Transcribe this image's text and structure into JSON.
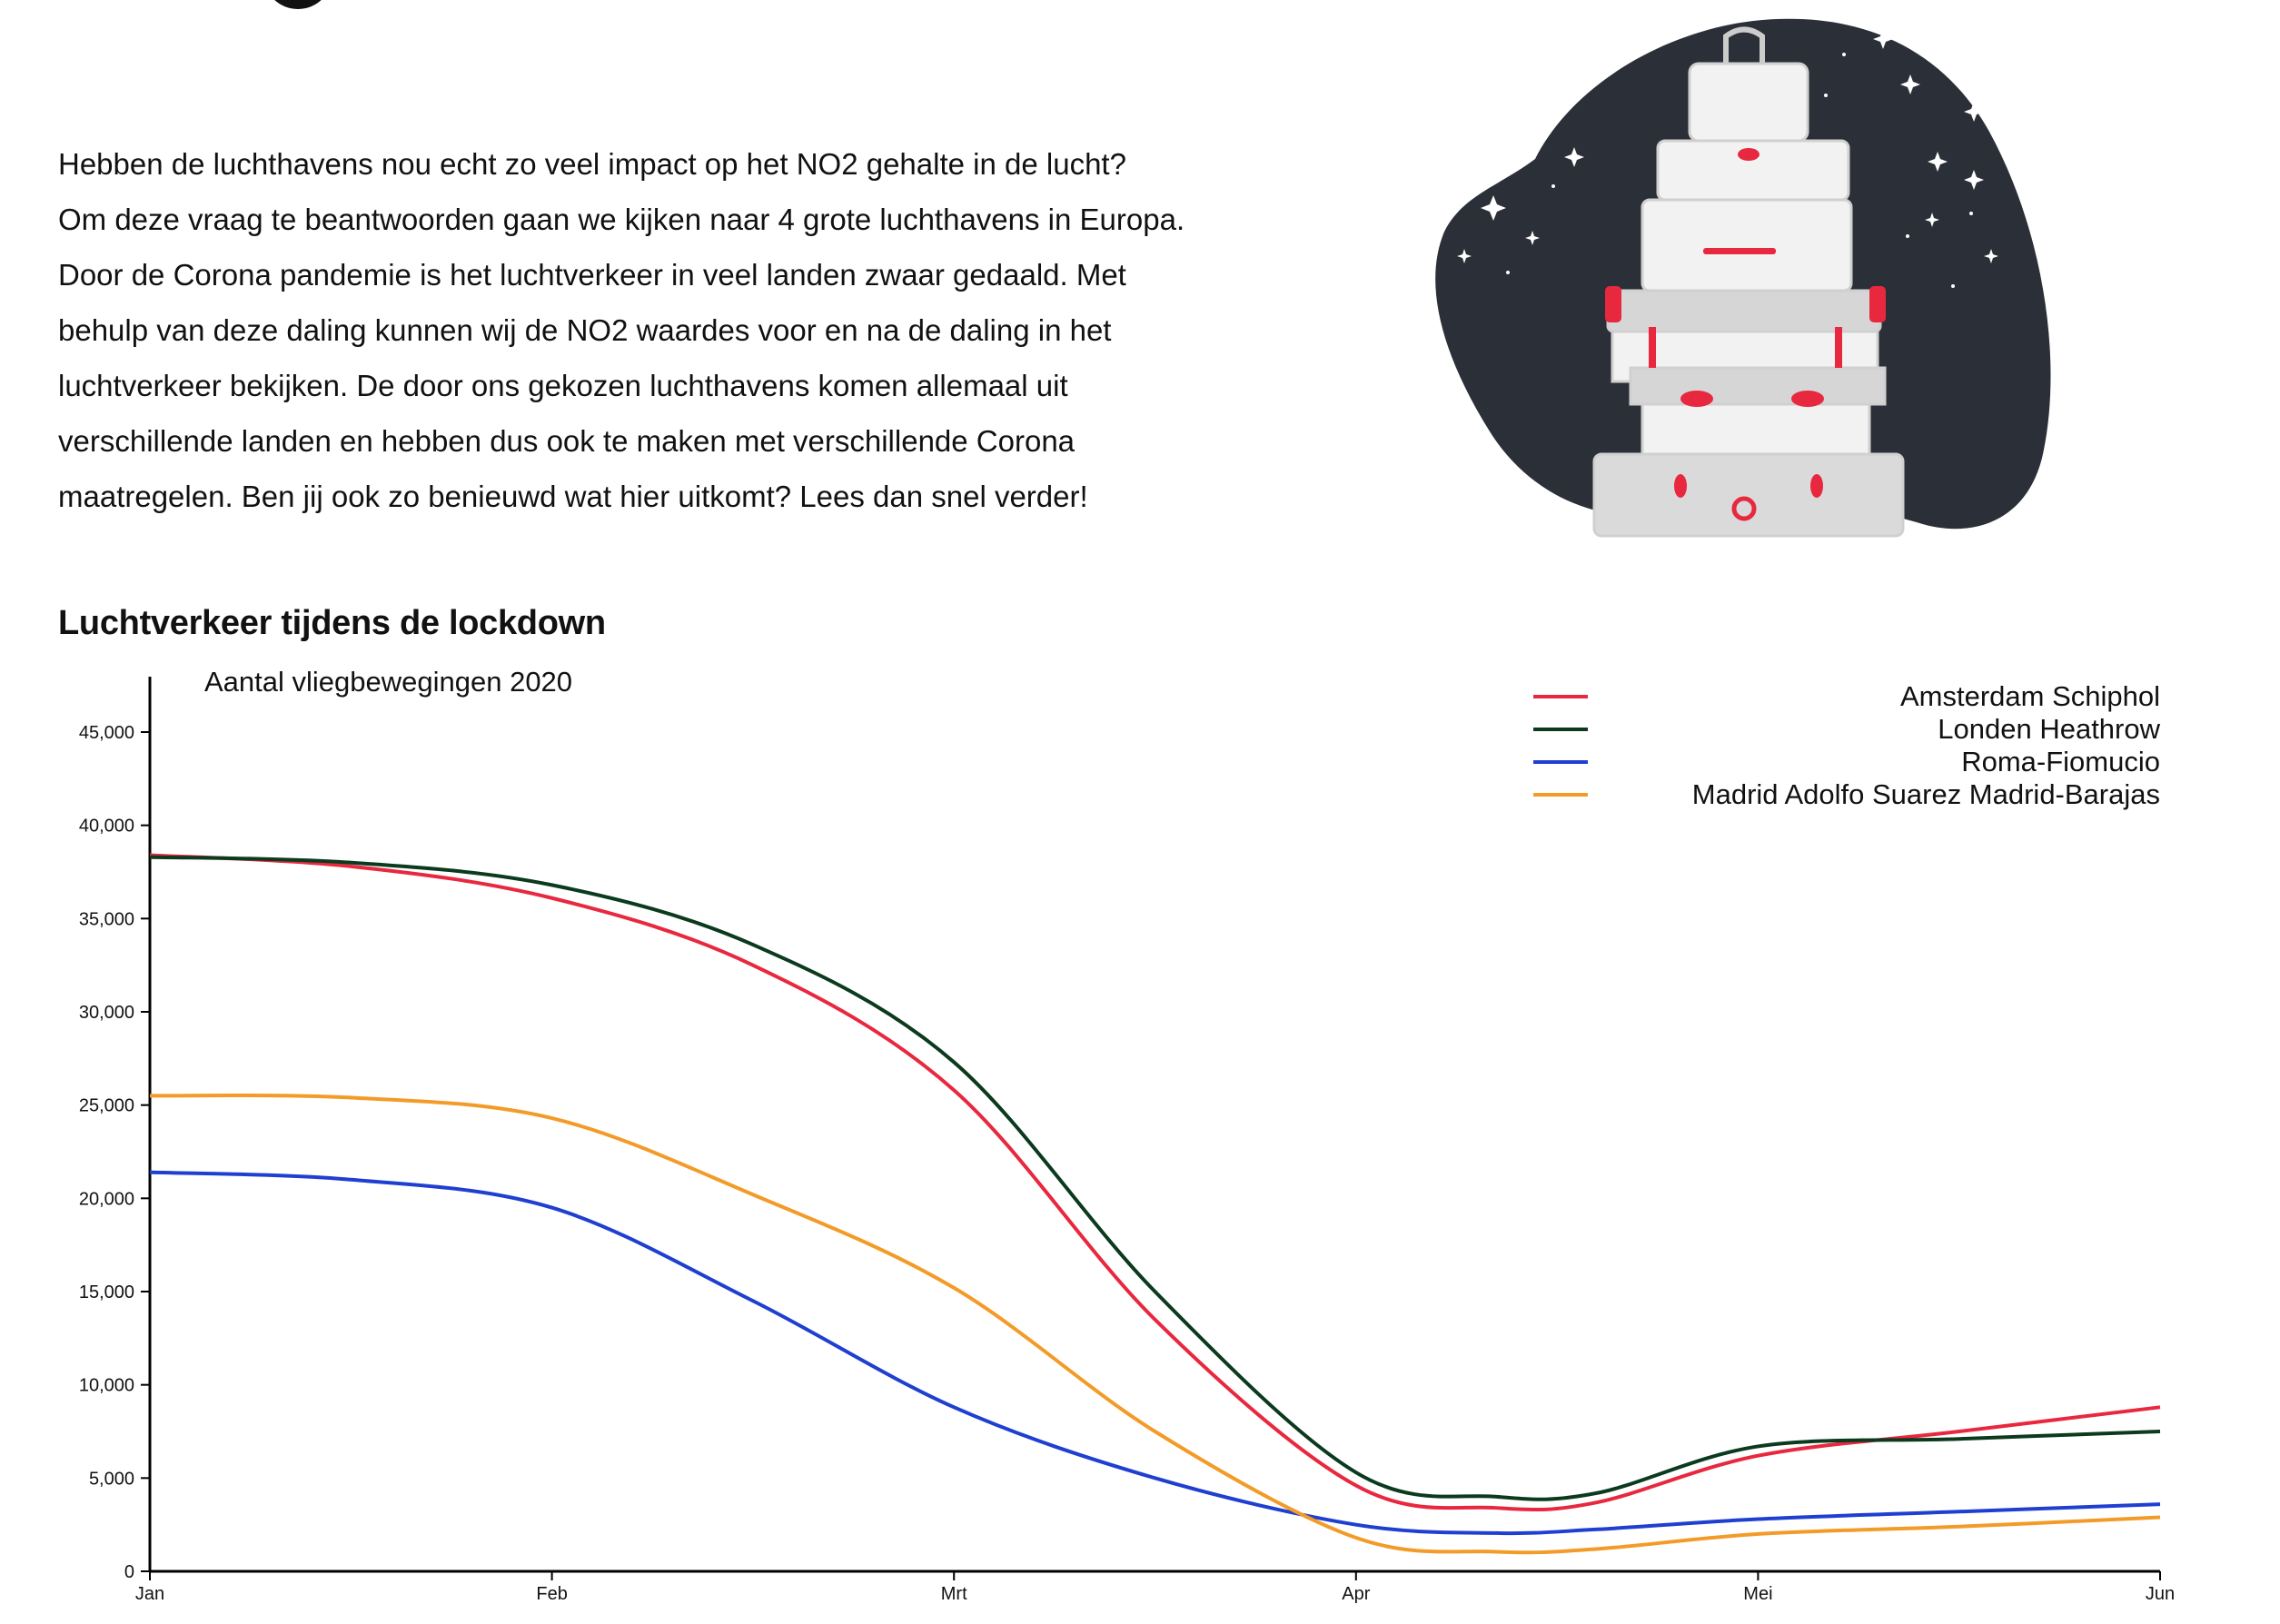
{
  "intro": {
    "lines": [
      "Hebben de luchthavens nou echt zo veel impact op het NO2 gehalte in de lucht?",
      "Om deze vraag te beantwoorden gaan we kijken naar 4 grote luchthavens in Europa.",
      "Door de Corona pandemie is het luchtverkeer in veel landen zwaar gedaald. Met",
      "behulp van deze daling kunnen wij de NO2 waardes voor en na de daling in het",
      "luchtverkeer bekijken. De door ons gekozen luchthavens komen allemaal uit",
      "verschillende landen en hebben dus ook te maken met verschillende Corona",
      "maatregelen. Ben jij ook zo benieuwd wat hier uitkomt? Lees dan snel verder!"
    ]
  },
  "illustration": {
    "icon": "stacked-suitcases-illustration",
    "colors": {
      "blob": "#2b2f38",
      "case": "#f0f0f0",
      "accent": "#e8283f"
    }
  },
  "section_title": "Luchtverkeer tijdens de lockdown",
  "chart_data": {
    "type": "line",
    "title": "Aantal vliegbewegingen 2020",
    "categories": [
      "Jan",
      "Feb",
      "Mrt",
      "Apr",
      "Mei",
      "Jun"
    ],
    "ylim": [
      0,
      45000
    ],
    "yticks": [
      "0",
      "5,000",
      "10,000",
      "15,000",
      "20,000",
      "25,000",
      "30,000",
      "35,000",
      "40,000",
      "45,000"
    ],
    "legend_position": "top-right",
    "series": [
      {
        "name": "Amsterdam Schiphol",
        "color": "#e8283f",
        "points": [
          [
            0,
            38400
          ],
          [
            0.5,
            37800
          ],
          [
            1,
            36100
          ],
          [
            1.5,
            32500
          ],
          [
            2,
            25800
          ],
          [
            2.5,
            13500
          ],
          [
            3,
            4600
          ],
          [
            3.35,
            3400
          ],
          [
            3.6,
            3700
          ],
          [
            4,
            6200
          ],
          [
            4.5,
            7500
          ],
          [
            5,
            8800
          ]
        ]
      },
      {
        "name": "Londen Heathrow",
        "color": "#0b3a1e",
        "points": [
          [
            0,
            38300
          ],
          [
            0.5,
            38000
          ],
          [
            1,
            36800
          ],
          [
            1.5,
            33600
          ],
          [
            2,
            27300
          ],
          [
            2.5,
            15000
          ],
          [
            3,
            5300
          ],
          [
            3.35,
            4000
          ],
          [
            3.6,
            4200
          ],
          [
            4,
            6700
          ],
          [
            4.5,
            7100
          ],
          [
            5,
            7500
          ]
        ]
      },
      {
        "name": "Roma-Fiomucio",
        "color": "#1f3fd1",
        "points": [
          [
            0,
            21400
          ],
          [
            0.5,
            21000
          ],
          [
            1,
            19500
          ],
          [
            1.5,
            14500
          ],
          [
            2,
            8800
          ],
          [
            2.5,
            5000
          ],
          [
            3,
            2500
          ],
          [
            3.35,
            2050
          ],
          [
            3.6,
            2250
          ],
          [
            4,
            2800
          ],
          [
            4.5,
            3200
          ],
          [
            5,
            3600
          ]
        ]
      },
      {
        "name": "Madrid Adolfo Suarez Madrid-Barajas",
        "color": "#f39b28",
        "points": [
          [
            0,
            25500
          ],
          [
            0.5,
            25400
          ],
          [
            1,
            24300
          ],
          [
            1.5,
            20200
          ],
          [
            2,
            15200
          ],
          [
            2.5,
            7500
          ],
          [
            3,
            1800
          ],
          [
            3.35,
            1050
          ],
          [
            3.6,
            1200
          ],
          [
            4,
            2000
          ],
          [
            4.5,
            2400
          ],
          [
            5,
            2900
          ]
        ]
      }
    ]
  }
}
